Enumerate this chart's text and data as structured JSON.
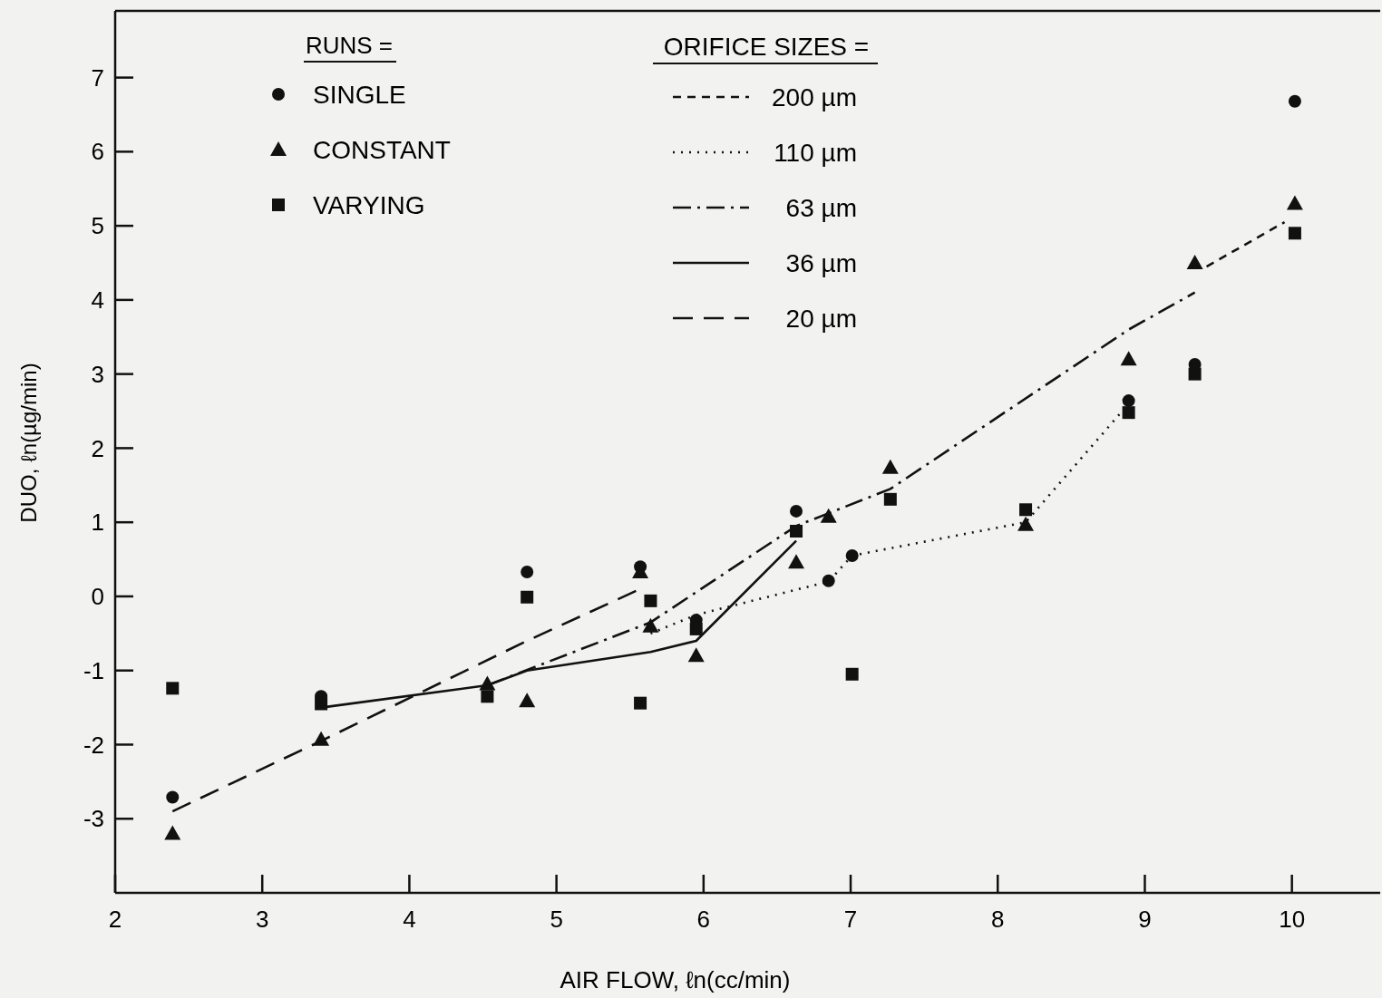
{
  "chart_data": {
    "type": "scatter",
    "xlabel": "AIR FLOW, ℓn(cc/min)",
    "ylabel": "DUO, ℓn(µg/min)",
    "xlim": [
      2,
      10.6
    ],
    "xticks": [
      2,
      3,
      4,
      5,
      6,
      7,
      8,
      9,
      10
    ],
    "ylim": [
      -4,
      7.9
    ],
    "yticks": [
      -3,
      -2,
      -1,
      0,
      1,
      2,
      3,
      4,
      5,
      6,
      7
    ],
    "legend": "top left",
    "legend_title": "RUNS =",
    "annotations": [
      "ORIFICE SIZES ="
    ],
    "grid": false,
    "series": [
      {
        "name": "SINGLE",
        "marker": "circle",
        "color": "#111111",
        "x": [
          2.39,
          3.4,
          4.8,
          5.57,
          5.95,
          6.63,
          6.85,
          7.01,
          8.89,
          9.34,
          10.02
        ],
        "values": [
          -2.71,
          -1.35,
          0.33,
          0.4,
          -0.32,
          1.15,
          0.21,
          0.55,
          2.64,
          3.13,
          6.68
        ]
      },
      {
        "name": "CONSTANT",
        "marker": "triangle",
        "color": "#111111",
        "x": [
          2.39,
          3.4,
          4.53,
          4.8,
          5.57,
          5.64,
          5.95,
          6.63,
          6.85,
          7.27,
          8.19,
          8.89,
          9.34,
          10.02
        ],
        "values": [
          -3.2,
          -1.93,
          -1.18,
          -1.41,
          0.33,
          -0.4,
          -0.8,
          0.46,
          1.08,
          1.74,
          0.97,
          3.2,
          4.5,
          5.3
        ]
      },
      {
        "name": "VARYING",
        "marker": "square",
        "color": "#111111",
        "x": [
          2.39,
          3.4,
          4.53,
          4.8,
          5.57,
          5.64,
          5.95,
          6.63,
          7.01,
          7.27,
          8.19,
          8.89,
          9.34,
          10.02
        ],
        "values": [
          -1.24,
          -1.45,
          -1.35,
          -0.01,
          -1.44,
          -0.06,
          -0.44,
          0.88,
          -1.05,
          1.31,
          1.17,
          2.48,
          3.0,
          4.9
        ]
      },
      {
        "name": "200 µm",
        "type": "line",
        "line_style": "short-dashed",
        "marker": "none",
        "color": "#111111",
        "x": [
          9.42,
          9.95
        ],
        "values": [
          4.45,
          5.05
        ]
      },
      {
        "name": "110 µm",
        "type": "line",
        "line_style": "dotted",
        "marker": "none",
        "color": "#111111",
        "x": [
          5.64,
          5.95,
          6.85,
          7.01,
          8.19,
          8.89
        ],
        "values": [
          -0.5,
          -0.25,
          0.2,
          0.55,
          1.0,
          2.6
        ]
      },
      {
        "name": "63 µm",
        "type": "line",
        "line_style": "dashdot",
        "marker": "none",
        "color": "#111111",
        "x": [
          4.53,
          5.64,
          6.63,
          7.27,
          8.89,
          9.34
        ],
        "values": [
          -1.2,
          -0.35,
          0.95,
          1.45,
          3.6,
          4.1
        ]
      },
      {
        "name": "36 µm",
        "type": "line",
        "line_style": "solid",
        "marker": "none",
        "color": "#111111",
        "x": [
          3.4,
          4.53,
          4.8,
          5.64,
          5.95,
          6.63
        ],
        "values": [
          -1.5,
          -1.2,
          -1.0,
          -0.75,
          -0.6,
          0.75
        ]
      },
      {
        "name": "20 µm",
        "type": "line",
        "line_style": "dashed",
        "marker": "none",
        "color": "#111111",
        "x": [
          2.39,
          3.4,
          4.8,
          5.57
        ],
        "values": [
          -2.9,
          -1.95,
          -0.6,
          0.1
        ]
      }
    ]
  }
}
